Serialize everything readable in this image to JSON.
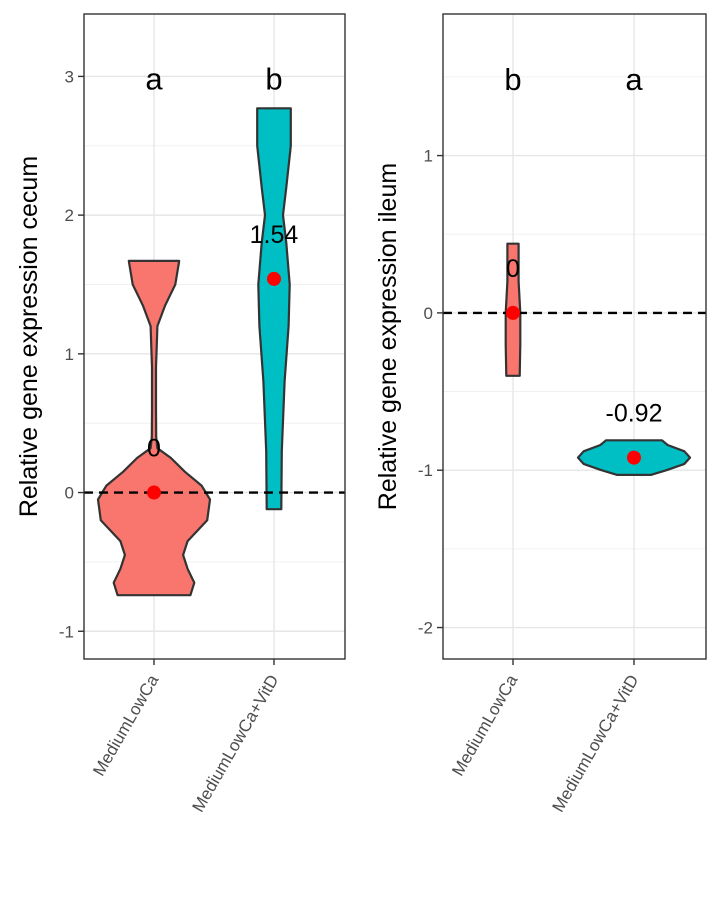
{
  "chart_data": [
    {
      "type": "violin",
      "title": "",
      "xlabel": "",
      "ylabel": "Relative gene expression cecum",
      "ylim": [
        -1.2,
        3.45
      ],
      "yticks": [
        -1,
        0,
        1,
        2,
        3
      ],
      "ytick_labels": [
        "-1",
        "0",
        "1",
        "2",
        "3"
      ],
      "grid": true,
      "reference_line": 0,
      "categories": [
        "MediumLowCa",
        "MediumLowCa+VitD"
      ],
      "series": [
        {
          "category": "MediumLowCa",
          "color": "#F8766D",
          "min": -0.74,
          "max": 1.67,
          "mean": 0,
          "mean_label": "0",
          "group_letter": "a",
          "profile": [
            [
              -0.74,
              0.65
            ],
            [
              -0.65,
              0.72
            ],
            [
              -0.55,
              0.6
            ],
            [
              -0.45,
              0.52
            ],
            [
              -0.35,
              0.6
            ],
            [
              -0.2,
              0.95
            ],
            [
              -0.05,
              1.0
            ],
            [
              0.05,
              0.85
            ],
            [
              0.15,
              0.55
            ],
            [
              0.25,
              0.3
            ],
            [
              0.32,
              0.06
            ],
            [
              0.4,
              0.04
            ],
            [
              0.6,
              0.035
            ],
            [
              0.9,
              0.035
            ],
            [
              1.2,
              0.06
            ],
            [
              1.35,
              0.2
            ],
            [
              1.5,
              0.38
            ],
            [
              1.67,
              0.45
            ]
          ]
        },
        {
          "category": "MediumLowCa+VitD",
          "color": "#00BFC4",
          "min": -0.12,
          "max": 2.77,
          "mean": 1.54,
          "mean_label": "1.54",
          "group_letter": "b",
          "profile": [
            [
              -0.12,
              0.13
            ],
            [
              0.3,
              0.14
            ],
            [
              0.8,
              0.19
            ],
            [
              1.2,
              0.26
            ],
            [
              1.5,
              0.28
            ],
            [
              1.8,
              0.22
            ],
            [
              2.0,
              0.16
            ],
            [
              2.2,
              0.22
            ],
            [
              2.5,
              0.3
            ],
            [
              2.77,
              0.3
            ]
          ]
        }
      ],
      "mean_point_color": "#FF0000"
    },
    {
      "type": "violin",
      "title": "",
      "xlabel": "",
      "ylabel": "Relative gene expression ileum",
      "ylim": [
        -2.2,
        1.9
      ],
      "yticks": [
        -2,
        -1,
        0,
        1
      ],
      "ytick_labels": [
        "-2",
        "-1",
        "0",
        "1"
      ],
      "grid": true,
      "reference_line": 0,
      "categories": [
        "MediumLowCa",
        "MediumLowCa+VitD"
      ],
      "series": [
        {
          "category": "MediumLowCa",
          "color": "#F8766D",
          "min": -0.4,
          "max": 0.44,
          "mean": 0,
          "mean_label": "0",
          "group_letter": "b",
          "profile": [
            [
              -0.4,
              0.12
            ],
            [
              -0.2,
              0.13
            ],
            [
              0.0,
              0.13
            ],
            [
              0.2,
              0.1
            ],
            [
              0.44,
              0.1
            ]
          ]
        },
        {
          "category": "MediumLowCa+VitD",
          "color": "#00BFC4",
          "min": -1.03,
          "max": -0.81,
          "mean": -0.92,
          "mean_label": "-0.92",
          "group_letter": "a",
          "profile": [
            [
              -1.03,
              0.3
            ],
            [
              -1.0,
              0.58
            ],
            [
              -0.96,
              0.9
            ],
            [
              -0.92,
              1.0
            ],
            [
              -0.88,
              0.9
            ],
            [
              -0.84,
              0.6
            ],
            [
              -0.81,
              0.5
            ]
          ]
        }
      ],
      "mean_point_color": "#FF0000"
    }
  ]
}
